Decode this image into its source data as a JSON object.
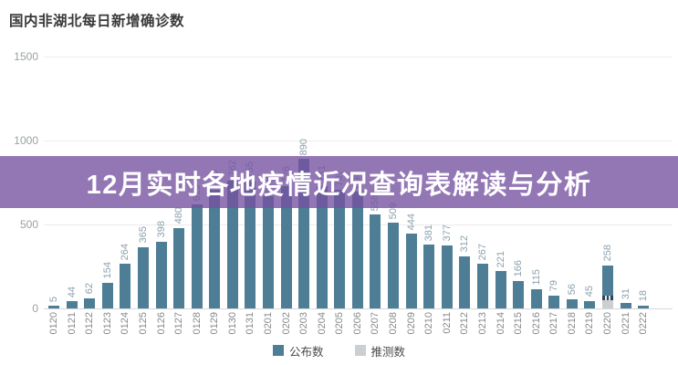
{
  "title": "国内非湖北每日新增确诊数",
  "overlay_banner": {
    "text": "12月实时各地疫情近况查询表解读与分析",
    "bg_color": "#7551A0",
    "bg_opacity": 0.78,
    "text_color": "#ffffff"
  },
  "legend": {
    "items": [
      {
        "label": "公布数",
        "color": "#4e7e96"
      },
      {
        "label": "推测数",
        "color": "#cbcfd2"
      }
    ]
  },
  "chart_data": {
    "type": "bar",
    "title": "国内非湖北每日新增确诊数",
    "categories": [
      "0120",
      "0121",
      "0122",
      "0123",
      "0124",
      "0125",
      "0126",
      "0127",
      "0128",
      "0129",
      "0130",
      "0131",
      "0201",
      "0202",
      "0203",
      "0204",
      "0205",
      "0206",
      "0207",
      "0208",
      "0209",
      "0210",
      "0211",
      "0212",
      "0213",
      "0214",
      "0215",
      "0216",
      "0217",
      "0218",
      "0219",
      "0220",
      "0221",
      "0222"
    ],
    "values": [
      5,
      44,
      62,
      154,
      264,
      365,
      398,
      480,
      619,
      705,
      762,
      755,
      669,
      726,
      890,
      731,
      707,
      696,
      558,
      509,
      444,
      381,
      377,
      312,
      267,
      221,
      166,
      115,
      79,
      56,
      45,
      258,
      31,
      18
    ],
    "series_name": "公布数",
    "ylim": [
      0,
      1500
    ],
    "yticks": [
      0,
      500,
      1000,
      1500
    ],
    "grid": true,
    "bar_value_labels": true,
    "legend_position": "bottom",
    "special_bars": {
      "0220": {
        "published_total": 258,
        "estimated_segment": 50
      }
    }
  }
}
